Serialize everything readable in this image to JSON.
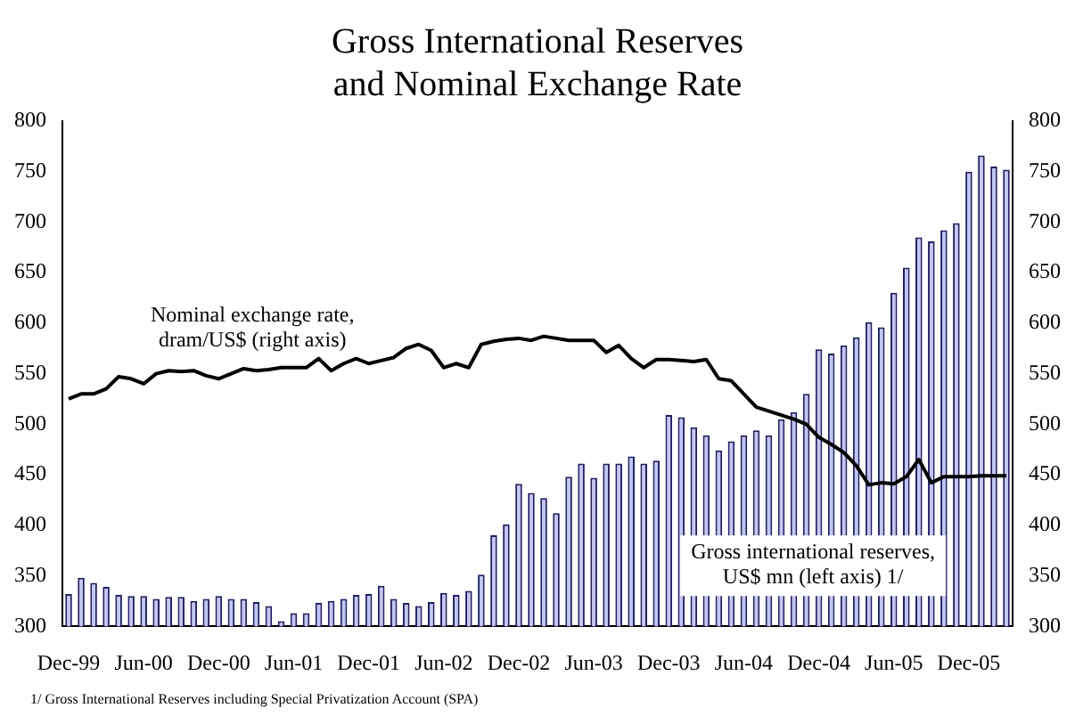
{
  "chart_data": {
    "type": "bar",
    "title": "Gross International Reserves\nand Nominal Exchange Rate",
    "categories": [
      "Dec-99",
      null,
      null,
      null,
      null,
      null,
      "Jun-00",
      null,
      null,
      null,
      null,
      null,
      "Dec-00",
      null,
      null,
      null,
      null,
      null,
      "Jun-01",
      null,
      null,
      null,
      null,
      null,
      "Dec-01",
      null,
      null,
      null,
      null,
      null,
      "Jun-02",
      null,
      null,
      null,
      null,
      null,
      "Dec-02",
      null,
      null,
      null,
      null,
      null,
      "Jun-03",
      null,
      null,
      null,
      null,
      null,
      "Dec-03",
      null,
      null,
      null,
      null,
      null,
      "Jun-04",
      null,
      null,
      null,
      null,
      null,
      "Dec-04",
      null,
      null,
      null,
      null,
      null,
      "Jun-05",
      null,
      null,
      null,
      null,
      null,
      "Dec-05",
      null,
      null,
      null
    ],
    "series": [
      {
        "name": "Gross international reserves, US$ mn (left axis) 1/",
        "color": "#c4c4f4",
        "values": [
          332,
          348,
          343,
          339,
          331,
          330,
          330,
          327,
          329,
          329,
          325,
          327,
          330,
          327,
          327,
          324,
          320,
          305,
          313,
          313,
          323,
          325,
          327,
          331,
          332,
          340,
          327,
          323,
          320,
          324,
          333,
          331,
          335,
          351,
          390,
          401,
          441,
          432,
          427,
          412,
          448,
          461,
          447,
          461,
          461,
          468,
          461,
          464,
          509,
          507,
          497,
          489,
          474,
          483,
          489,
          494,
          489,
          505,
          512,
          530,
          574,
          570,
          578,
          586,
          601,
          596,
          630,
          655,
          685,
          681,
          692,
          699,
          750,
          766,
          755,
          752
        ]
      },
      {
        "name": "Nominal exchange rate, dram/US$ (right axis)",
        "type": "line",
        "axis": "y2",
        "color": "#000000",
        "values": [
          525,
          530,
          530,
          535,
          547,
          545,
          540,
          550,
          553,
          552,
          553,
          548,
          545,
          550,
          555,
          553,
          554,
          556,
          556,
          556,
          565,
          553,
          560,
          565,
          560,
          563,
          566,
          575,
          579,
          573,
          556,
          560,
          556,
          579,
          582,
          584,
          585,
          583,
          587,
          585,
          583,
          583,
          583,
          571,
          578,
          565,
          556,
          564,
          564,
          563,
          562,
          564,
          545,
          543,
          530,
          517,
          513,
          509,
          505,
          500,
          487,
          480,
          472,
          459,
          440,
          442,
          441,
          448,
          465,
          442,
          448,
          448,
          448,
          449,
          449,
          449
        ]
      }
    ],
    "ylim": [
      300,
      800
    ],
    "yticks": [
      300,
      350,
      400,
      450,
      500,
      550,
      600,
      650,
      700,
      750,
      800
    ],
    "y2lim": [
      300,
      800
    ],
    "y2ticks": [
      300,
      350,
      400,
      450,
      500,
      550,
      600,
      650,
      700,
      750,
      800
    ],
    "annotations": [
      "1/ Gross International Reserves including Special Privatization Account (SPA)"
    ],
    "legend": false,
    "grid": false
  }
}
